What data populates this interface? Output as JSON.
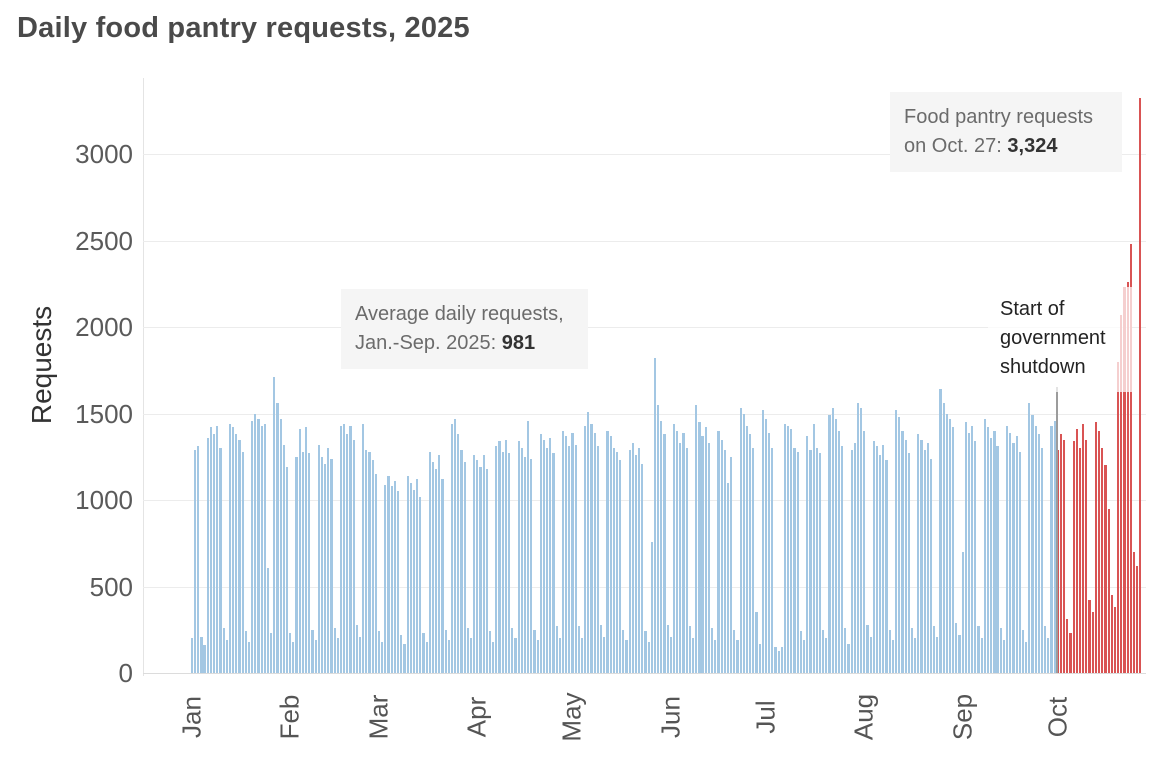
{
  "page": {
    "title": "Daily food pantry requests, 2025"
  },
  "annotations": {
    "average": {
      "line1": "Average daily requests,",
      "line2_prefix": "Jan.-Sep. 2025: ",
      "value": "981"
    },
    "oct27": {
      "line1": "Food pantry requests",
      "line2_prefix": "on Oct. 27: ",
      "value": "3,324"
    },
    "shutdown": {
      "line1": "Start of",
      "line2": "government",
      "line3": "shutdown"
    }
  },
  "chart_data": {
    "type": "bar",
    "title": "Daily food pantry requests, 2025",
    "xlabel": "",
    "ylabel": "Requests",
    "ylim": [
      0,
      3324
    ],
    "y_ticks": [
      0,
      500,
      1000,
      1500,
      2000,
      2500,
      3000
    ],
    "grid": "horizontal",
    "start_date": "2025-01-01",
    "end_date": "2025-10-27",
    "x_tick_labels": [
      "Jan",
      "Feb",
      "Mar",
      "Apr",
      "May",
      "Jun",
      "Jul",
      "Aug",
      "Sep",
      "Oct"
    ],
    "month_start_indices": [
      0,
      31,
      59,
      90,
      120,
      151,
      181,
      212,
      243,
      273
    ],
    "series_name": "Daily food pantry requests",
    "average_jan_sep": 981,
    "max_value": 3324,
    "max_value_date": "2025-10-27",
    "shutdown_start_date": "2025-10-01",
    "red_start_index": 273,
    "colors": {
      "normal": "#a3c7e3",
      "shutdown": "#d95454",
      "shutdown_line": "#9c9c9c"
    },
    "values": [
      200,
      1290,
      1310,
      210,
      160,
      1360,
      1420,
      1380,
      1430,
      1300,
      260,
      190,
      1440,
      1420,
      1380,
      1350,
      1280,
      240,
      180,
      1460,
      1500,
      1470,
      1430,
      1440,
      610,
      230,
      1710,
      1560,
      1470,
      1320,
      1190,
      230,
      180,
      1250,
      1410,
      1280,
      1420,
      1270,
      250,
      190,
      1320,
      1250,
      1210,
      1300,
      1240,
      260,
      200,
      1430,
      1440,
      1380,
      1430,
      1350,
      280,
      210,
      1440,
      1290,
      1280,
      1230,
      1150,
      240,
      180,
      1090,
      1140,
      1080,
      1110,
      1050,
      220,
      170,
      1140,
      1100,
      1060,
      1120,
      1020,
      230,
      180,
      1280,
      1220,
      1180,
      1260,
      1120,
      250,
      190,
      1440,
      1470,
      1380,
      1290,
      1220,
      260,
      200,
      1260,
      1230,
      1190,
      1260,
      1180,
      240,
      180,
      1310,
      1340,
      1280,
      1350,
      1270,
      260,
      200,
      1340,
      1300,
      1250,
      1460,
      1240,
      250,
      190,
      1380,
      1350,
      1300,
      1360,
      1270,
      270,
      200,
      1400,
      1370,
      1310,
      1390,
      1320,
      270,
      200,
      1430,
      1510,
      1440,
      1390,
      1310,
      280,
      210,
      1400,
      1370,
      1300,
      1280,
      1230,
      250,
      190,
      1290,
      1330,
      1260,
      1300,
      1210,
      240,
      180,
      760,
      1820,
      1550,
      1460,
      1380,
      280,
      210,
      1440,
      1400,
      1330,
      1390,
      1300,
      270,
      200,
      1550,
      1450,
      1370,
      1420,
      1330,
      260,
      190,
      1400,
      1350,
      1290,
      1100,
      1250,
      250,
      190,
      1530,
      1500,
      1430,
      1380,
      1300,
      350,
      170,
      1520,
      1470,
      1390,
      1300,
      150,
      130,
      150,
      1440,
      1430,
      1410,
      1300,
      1280,
      240,
      190,
      1370,
      1290,
      1440,
      1300,
      1270,
      250,
      200,
      1490,
      1530,
      1470,
      1400,
      1310,
      260,
      170,
      1290,
      1330,
      1560,
      1530,
      1400,
      280,
      210,
      1340,
      1310,
      1260,
      1320,
      1230,
      250,
      190,
      1520,
      1480,
      1400,
      1350,
      1270,
      260,
      200,
      1380,
      1350,
      1290,
      1330,
      1240,
      270,
      210,
      1640,
      1560,
      1500,
      1470,
      1420,
      290,
      220,
      700,
      1450,
      1390,
      1430,
      1340,
      270,
      200,
      1470,
      1420,
      1360,
      1400,
      1310,
      260,
      190,
      1430,
      1390,
      1330,
      1370,
      1280,
      250,
      180,
      1560,
      1490,
      1430,
      1380,
      1300,
      270,
      200,
      1430,
      1460,
      1290,
      1380,
      1350,
      310,
      230,
      1340,
      1410,
      1300,
      1440,
      1350,
      420,
      350,
      1450,
      1400,
      1300,
      1200,
      950,
      450,
      380,
      1800,
      2070,
      2230,
      2260,
      2480,
      700,
      620,
      3324
    ]
  }
}
